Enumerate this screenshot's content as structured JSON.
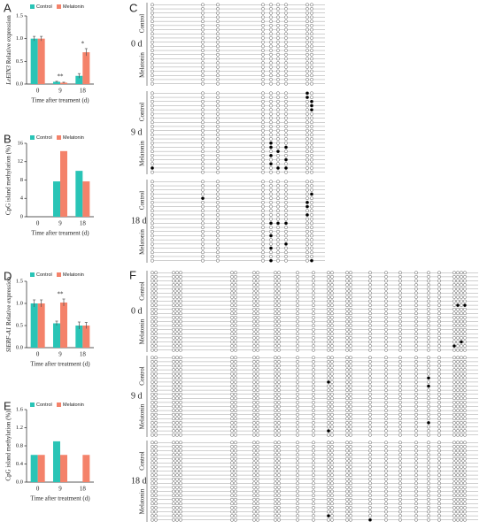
{
  "chart_data": [
    {
      "type": "bar",
      "panel": "A",
      "ylabel": {
        "gene": "LeEIN3",
        "text": "Relative expression"
      },
      "xlabel": "Time after treament (d)",
      "categories": [
        "0",
        "9",
        "18"
      ],
      "series": [
        {
          "name": "Control",
          "color": "#29c4b6",
          "values": [
            1.0,
            0.05,
            0.18
          ],
          "errors": [
            0.05,
            0.01,
            0.05
          ]
        },
        {
          "name": "Melatonin",
          "color": "#f4826a",
          "values": [
            1.0,
            0.03,
            0.7
          ],
          "errors": [
            0.05,
            0.01,
            0.08
          ]
        }
      ],
      "annotations": [
        {
          "text": "**",
          "x": "9"
        },
        {
          "text": "*",
          "x": "18"
        }
      ],
      "ylim": [
        0,
        1.5
      ],
      "yticks": [
        {
          "value": 0,
          "label": "0.0"
        },
        {
          "value": 0.5,
          "label": "0.5"
        },
        {
          "value": 1,
          "label": "1.0"
        },
        {
          "value": 1.5,
          "label": "1.5"
        }
      ]
    },
    {
      "type": "bar",
      "panel": "B",
      "ylabel": "CpG island methylation (%)",
      "xlabel": "Time after treament (d)",
      "categories": [
        "0",
        "9",
        "18"
      ],
      "series": [
        {
          "name": "Control",
          "color": "#29c4b6",
          "values": [
            0,
            7.7,
            10
          ]
        },
        {
          "name": "Melatonin",
          "color": "#f4826a",
          "values": [
            0,
            14.3,
            7.7
          ]
        }
      ],
      "ylim": [
        0,
        16
      ],
      "yticks": [
        0,
        4,
        8,
        12,
        16
      ]
    },
    {
      "type": "bar",
      "panel": "D",
      "ylabel": {
        "gene": "SlERF-A1",
        "text": "Relative expression"
      },
      "xlabel": "Time after treatment (d)",
      "categories": [
        "0",
        "9",
        "18"
      ],
      "series": [
        {
          "name": "Control",
          "color": "#29c4b6",
          "values": [
            1.0,
            0.55,
            0.5
          ],
          "errors": [
            0.08,
            0.05,
            0.08
          ]
        },
        {
          "name": "Melatonin",
          "color": "#f4826a",
          "values": [
            1.0,
            1.02,
            0.5
          ],
          "errors": [
            0.08,
            0.08,
            0.07
          ]
        }
      ],
      "annotations": [
        {
          "text": "**",
          "x": "9"
        }
      ],
      "ylim": [
        0,
        1.5
      ],
      "yticks": [
        {
          "value": 0,
          "label": "0.0"
        },
        {
          "value": 0.5,
          "label": "0.5"
        },
        {
          "value": 1,
          "label": "1.0"
        },
        {
          "value": 1.5,
          "label": "1.5"
        }
      ]
    },
    {
      "type": "bar",
      "panel": "E",
      "ylabel": "CpG island methylation (%)",
      "xlabel": "Time after treatment (d)",
      "categories": [
        "0",
        "9",
        "18"
      ],
      "series": [
        {
          "name": "Control",
          "color": "#29c4b6",
          "values": [
            0.6,
            0.9,
            0
          ]
        },
        {
          "name": "Melatonin",
          "color": "#f4826a",
          "values": [
            0.6,
            0.6,
            0.6
          ]
        }
      ],
      "ylim": [
        0,
        1.6
      ],
      "yticks": [
        {
          "value": 0,
          "label": "0.0"
        },
        {
          "value": 0.4,
          "label": "0.4"
        },
        {
          "value": 0.8,
          "label": "0.8"
        },
        {
          "value": 1.2,
          "label": "1.2"
        },
        {
          "value": 1.6,
          "label": "1.6"
        }
      ]
    }
  ],
  "methylation_panels": [
    {
      "panel": "C",
      "groups": [
        "0 d",
        "9 d",
        "18 d"
      ],
      "treatments": [
        "Control",
        "Melatonin"
      ]
    },
    {
      "panel": "F",
      "groups": [
        "0 d",
        "9 d",
        "18 d"
      ],
      "treatments": [
        "Control",
        "Melatonin"
      ]
    }
  ]
}
